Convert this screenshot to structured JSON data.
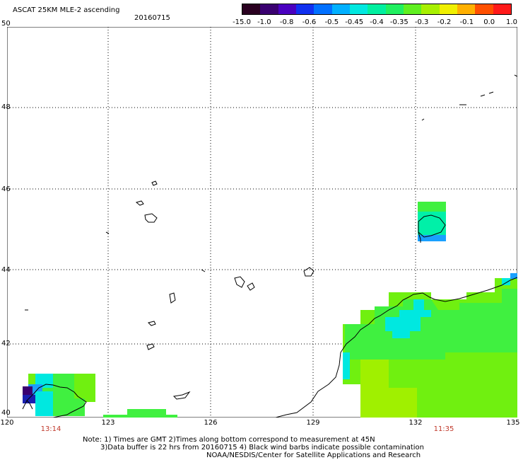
{
  "header": {
    "title": "ASCAT 25KM MLE-2 ascending",
    "date": "20160715"
  },
  "colorbar": {
    "labels": [
      "-15.0",
      "-1.0",
      "-0.8",
      "-0.6",
      "-0.5",
      "-0.45",
      "-0.4",
      "-0.35",
      "-0.3",
      "-0.2",
      "-0.1",
      "0.0",
      "1.0"
    ],
    "colors": [
      "#2a0020",
      "#3a0070",
      "#4a00c0",
      "#1030f0",
      "#0070ff",
      "#00b0ff",
      "#00e8e0",
      "#00f0a0",
      "#20f060",
      "#60f020",
      "#a8f000",
      "#f0f000",
      "#ffb000",
      "#ff5000",
      "#ff1a1a"
    ]
  },
  "map": {
    "lat_labels": [
      "50",
      "48",
      "46",
      "44",
      "42",
      "40"
    ],
    "lon_labels": [
      "120",
      "123",
      "126",
      "129",
      "132",
      "135"
    ],
    "time_labels": [
      "13:14",
      "11:35"
    ],
    "colors": {
      "cyan": "#00e8e0",
      "teal": "#00f0a8",
      "green": "#40f040",
      "lime": "#70f010",
      "yellowgreen": "#a0f000",
      "blue": "#1aa0ff",
      "purple": "#3a0070",
      "navy": "#1a20b0"
    }
  },
  "footer": {
    "line1": "Note: 1) Times are GMT 2)Times along bottom correspond to measurement at 45N",
    "line2": "3)Data buffer is 22 hrs from 20160715 4) Black wind barbs indicate possible contamination",
    "line3": "NOAA/NESDIS/Center for Satellite Applications and Research"
  }
}
